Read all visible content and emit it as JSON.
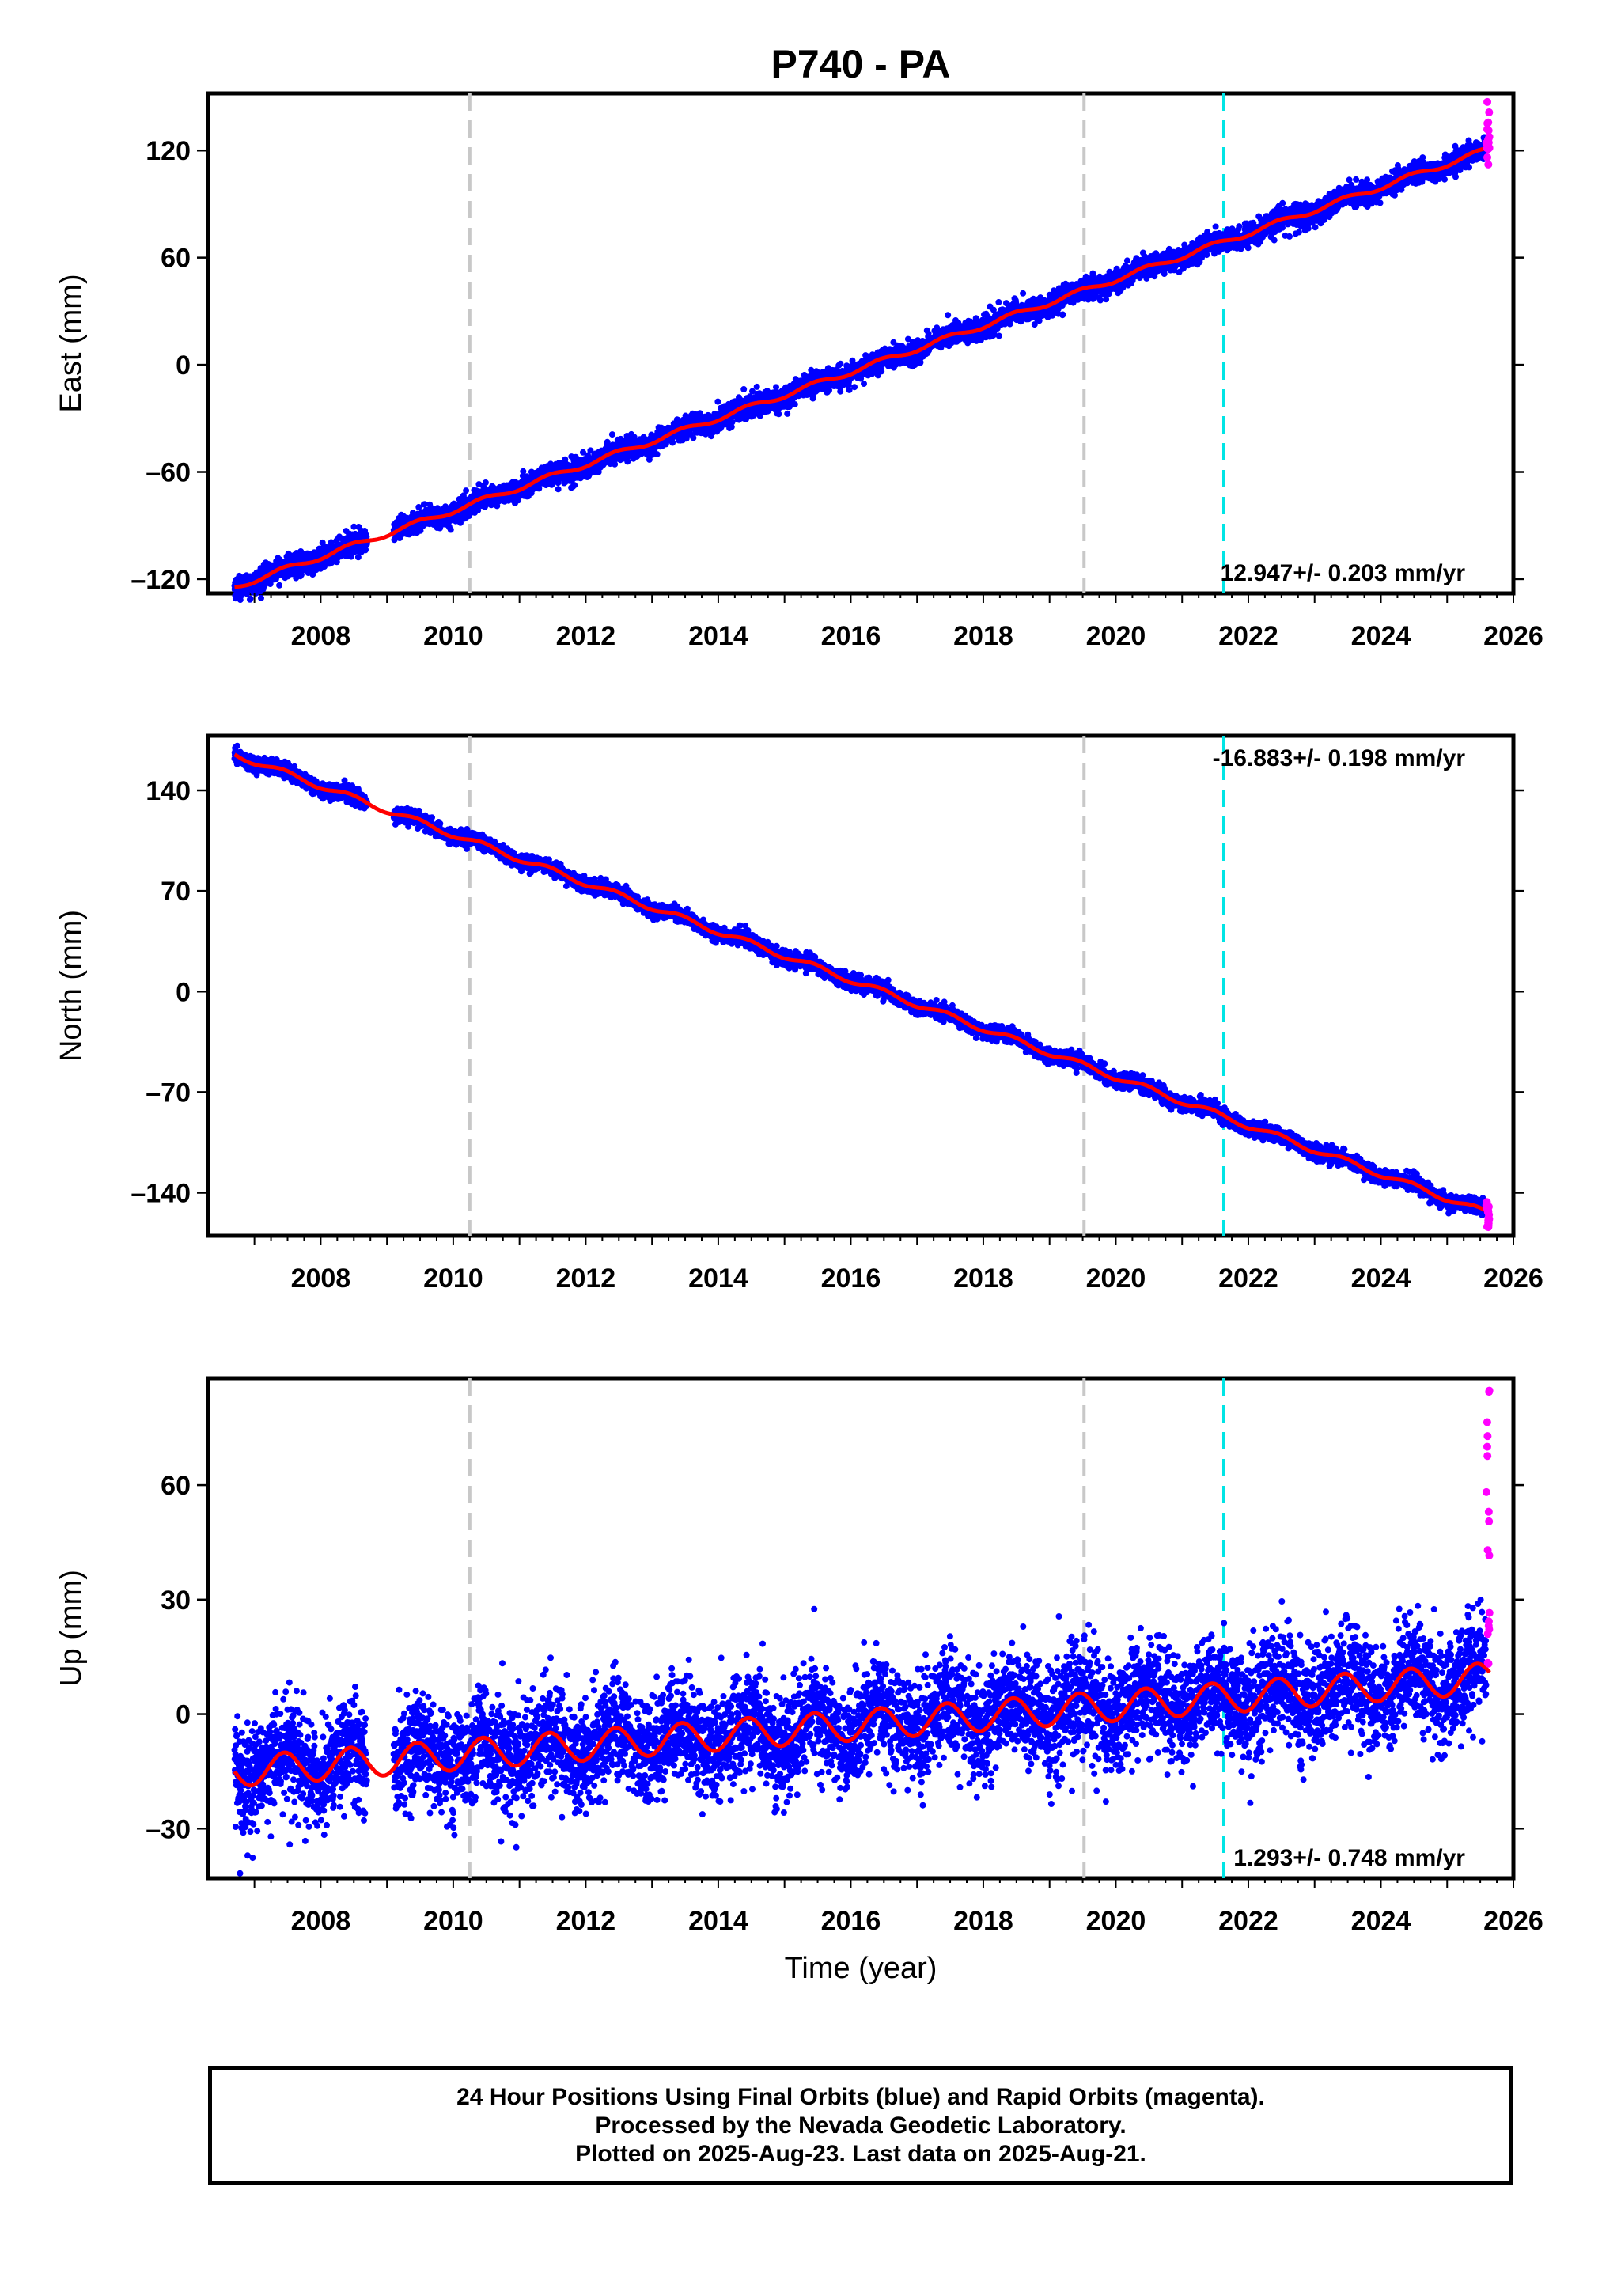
{
  "figure": {
    "title": "P740 - PA",
    "xlabel": "Time (year)",
    "x_ticks": [
      "2008",
      "2010",
      "2012",
      "2014",
      "2016",
      "2018",
      "2020",
      "2022",
      "2024",
      "2026"
    ],
    "colors": {
      "final_orbits": "#0000ff",
      "rapid_orbits": "#ff00ff",
      "model": "#ff0000",
      "equipment_change": "#c8c8c8",
      "earthquake": "#00e5e5"
    }
  },
  "chart_data": [
    {
      "type": "scatter",
      "component": "east",
      "ylabel": "East (mm)",
      "xlim": [
        2006.3,
        2026.0
      ],
      "ylim": [
        -128,
        152
      ],
      "yticks": [
        "120",
        "60",
        "0",
        "–60",
        "–120"
      ],
      "rate_label": "12.947+/- 0.203 mm/yr",
      "rate_mm_per_yr": 12.947,
      "value_at_2016": -4.0,
      "seasonal_amplitude_mm": 1.5,
      "scatter_mm": 3,
      "start_year": 2006.7,
      "end_year": 2025.64,
      "gap": [
        2008.7,
        2009.1
      ],
      "rapid_orbits": {
        "x_range": [
          2025.59,
          2025.64
        ],
        "y_range": [
          112,
          148
        ]
      },
      "vertical_lines": {
        "gray_dashed": [
          2010.25,
          2019.52
        ],
        "cyan_dashed": [
          2021.63
        ]
      }
    },
    {
      "type": "scatter",
      "component": "north",
      "ylabel": "North (mm)",
      "xlim": [
        2006.3,
        2026.0
      ],
      "ylim": [
        -170,
        178
      ],
      "yticks": [
        "140",
        "70",
        "0",
        "–70",
        "–140"
      ],
      "rate_label": "-16.883+/- 0.198 mm/yr",
      "rate_mm_per_yr": -16.883,
      "value_at_2016": 8.0,
      "seasonal_amplitude_mm": 2.0,
      "scatter_mm": 2.5,
      "start_year": 2006.7,
      "end_year": 2025.64,
      "gap": [
        2008.7,
        2009.1
      ],
      "rapid_orbits": {
        "x_range": [
          2025.59,
          2025.64
        ],
        "y_range": [
          -165,
          -145
        ]
      },
      "vertical_lines": {
        "gray_dashed": [
          2010.25,
          2019.52
        ],
        "cyan_dashed": [
          2021.63
        ]
      }
    },
    {
      "type": "scatter",
      "component": "up",
      "ylabel": "Up (mm)",
      "xlim": [
        2006.3,
        2026.0
      ],
      "ylim": [
        -43,
        88
      ],
      "yticks": [
        "60",
        "30",
        "0",
        "–30"
      ],
      "rate_label": "1.293+/- 0.748 mm/yr",
      "rate_mm_per_yr": 1.293,
      "value_at_2016": -3.0,
      "seasonal_amplitude_mm": 4.0,
      "scatter_mm": 7,
      "start_year": 2006.7,
      "end_year": 2025.64,
      "gap": [
        2008.7,
        2009.1
      ],
      "rapid_orbits": {
        "x_range": [
          2025.59,
          2025.64
        ],
        "y_range": [
          13,
          85
        ]
      },
      "vertical_lines": {
        "gray_dashed": [
          2010.25,
          2019.52
        ],
        "cyan_dashed": [
          2021.63
        ]
      }
    }
  ],
  "footer": {
    "line1": "24 Hour Positions Using Final Orbits (blue) and Rapid Orbits (magenta).",
    "line2": "Processed by the Nevada Geodetic Laboratory.",
    "line3": "Plotted on 2025-Aug-23. Last data on 2025-Aug-21."
  }
}
